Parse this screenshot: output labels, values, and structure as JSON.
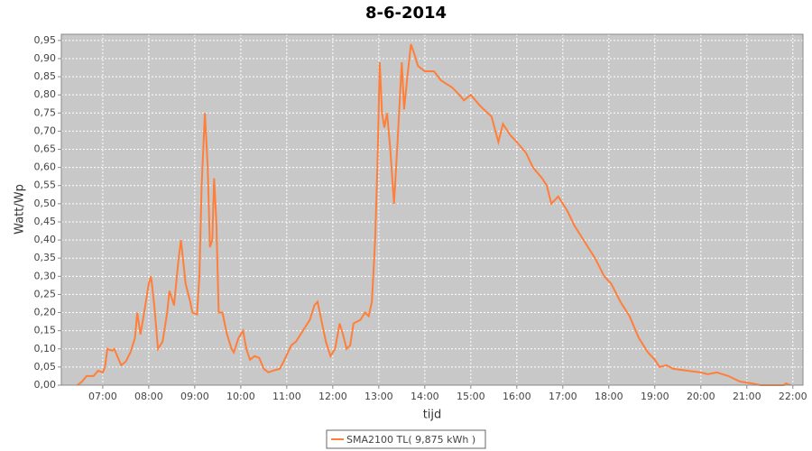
{
  "chart_data": {
    "type": "line",
    "title": "8-6-2014",
    "x_label": "tijd",
    "y_label": "Watt/Wp",
    "x": [
      6.45,
      6.55,
      6.65,
      6.8,
      6.9,
      7.0,
      7.05,
      7.1,
      7.2,
      7.25,
      7.35,
      7.4,
      7.5,
      7.6,
      7.7,
      7.75,
      7.82,
      7.9,
      8.0,
      8.05,
      8.12,
      8.2,
      8.3,
      8.4,
      8.45,
      8.55,
      8.65,
      8.7,
      8.8,
      8.9,
      8.95,
      9.05,
      9.1,
      9.15,
      9.22,
      9.28,
      9.33,
      9.38,
      9.42,
      9.47,
      9.52,
      9.6,
      9.7,
      9.8,
      9.85,
      9.95,
      10.05,
      10.12,
      10.2,
      10.3,
      10.4,
      10.5,
      10.6,
      10.7,
      10.85,
      10.95,
      11.1,
      11.2,
      11.3,
      11.4,
      11.5,
      11.6,
      11.67,
      11.75,
      11.85,
      11.95,
      12.05,
      12.15,
      12.22,
      12.3,
      12.38,
      12.45,
      12.6,
      12.7,
      12.78,
      12.85,
      12.92,
      12.97,
      13.02,
      13.07,
      13.12,
      13.18,
      13.25,
      13.33,
      13.4,
      13.5,
      13.55,
      13.62,
      13.7,
      13.78,
      13.85,
      14.0,
      14.2,
      14.35,
      14.6,
      14.75,
      14.85,
      15.0,
      15.2,
      15.45,
      15.6,
      15.7,
      15.85,
      16.0,
      16.2,
      16.35,
      16.55,
      16.65,
      16.75,
      16.9,
      17.1,
      17.25,
      17.45,
      17.7,
      17.9,
      18.05,
      18.25,
      18.45,
      18.65,
      18.85,
      19.0,
      19.1,
      19.25,
      19.4,
      19.7,
      20.0,
      20.15,
      20.35,
      20.6,
      20.85,
      21.1,
      21.3,
      21.8,
      21.85,
      21.95
    ],
    "series": [
      {
        "name": "SMA2100 TL( 9,875 kWh )",
        "color": "#ff7f3a",
        "values": [
          0,
          0.01,
          0.025,
          0.025,
          0.04,
          0.035,
          0.05,
          0.1,
          0.095,
          0.1,
          0.07,
          0.055,
          0.065,
          0.09,
          0.13,
          0.2,
          0.14,
          0.2,
          0.28,
          0.3,
          0.22,
          0.1,
          0.12,
          0.2,
          0.26,
          0.22,
          0.35,
          0.4,
          0.28,
          0.23,
          0.2,
          0.195,
          0.3,
          0.55,
          0.75,
          0.6,
          0.38,
          0.4,
          0.57,
          0.45,
          0.2,
          0.2,
          0.14,
          0.1,
          0.09,
          0.13,
          0.15,
          0.1,
          0.07,
          0.08,
          0.075,
          0.045,
          0.035,
          0.04,
          0.045,
          0.07,
          0.11,
          0.12,
          0.14,
          0.16,
          0.18,
          0.22,
          0.23,
          0.18,
          0.12,
          0.08,
          0.1,
          0.17,
          0.14,
          0.1,
          0.11,
          0.17,
          0.18,
          0.2,
          0.19,
          0.23,
          0.4,
          0.6,
          0.89,
          0.75,
          0.71,
          0.75,
          0.65,
          0.5,
          0.65,
          0.89,
          0.76,
          0.85,
          0.94,
          0.91,
          0.88,
          0.865,
          0.865,
          0.84,
          0.82,
          0.8,
          0.785,
          0.8,
          0.77,
          0.74,
          0.67,
          0.72,
          0.69,
          0.67,
          0.64,
          0.6,
          0.57,
          0.55,
          0.5,
          0.52,
          0.48,
          0.44,
          0.4,
          0.35,
          0.3,
          0.28,
          0.23,
          0.19,
          0.13,
          0.09,
          0.07,
          0.05,
          0.055,
          0.045,
          0.04,
          0.035,
          0.03,
          0.035,
          0.025,
          0.01,
          0.005,
          0,
          0,
          0.005,
          0
        ]
      }
    ],
    "xlim": [
      6.1,
      22.22
    ],
    "ylim": [
      0,
      0.967
    ],
    "xticks": [
      {
        "value": 7,
        "label": "07:00"
      },
      {
        "value": 8,
        "label": "08:00"
      },
      {
        "value": 9,
        "label": "09:00"
      },
      {
        "value": 10,
        "label": "10:00"
      },
      {
        "value": 11,
        "label": "11:00"
      },
      {
        "value": 12,
        "label": "12:00"
      },
      {
        "value": 13,
        "label": "13:00"
      },
      {
        "value": 14,
        "label": "14:00"
      },
      {
        "value": 15,
        "label": "15:00"
      },
      {
        "value": 16,
        "label": "16:00"
      },
      {
        "value": 17,
        "label": "17:00"
      },
      {
        "value": 18,
        "label": "18:00"
      },
      {
        "value": 19,
        "label": "19:00"
      },
      {
        "value": 20,
        "label": "20:00"
      },
      {
        "value": 21,
        "label": "21:00"
      },
      {
        "value": 22,
        "label": "22:00"
      }
    ],
    "yticks": [
      {
        "value": 0,
        "label": "0,00"
      },
      {
        "value": 0.05,
        "label": "0,05"
      },
      {
        "value": 0.1,
        "label": "0,10"
      },
      {
        "value": 0.15,
        "label": "0,15"
      },
      {
        "value": 0.2,
        "label": "0,20"
      },
      {
        "value": 0.25,
        "label": "0,25"
      },
      {
        "value": 0.3,
        "label": "0,30"
      },
      {
        "value": 0.35,
        "label": "0,35"
      },
      {
        "value": 0.4,
        "label": "0,40"
      },
      {
        "value": 0.45,
        "label": "0,45"
      },
      {
        "value": 0.5,
        "label": "0,50"
      },
      {
        "value": 0.55,
        "label": "0,55"
      },
      {
        "value": 0.6,
        "label": "0,60"
      },
      {
        "value": 0.65,
        "label": "0,65"
      },
      {
        "value": 0.7,
        "label": "0,70"
      },
      {
        "value": 0.75,
        "label": "0,75"
      },
      {
        "value": 0.8,
        "label": "0,80"
      },
      {
        "value": 0.85,
        "label": "0,85"
      },
      {
        "value": 0.9,
        "label": "0,90"
      },
      {
        "value": 0.95,
        "label": "0,95"
      }
    ],
    "grid": true
  }
}
